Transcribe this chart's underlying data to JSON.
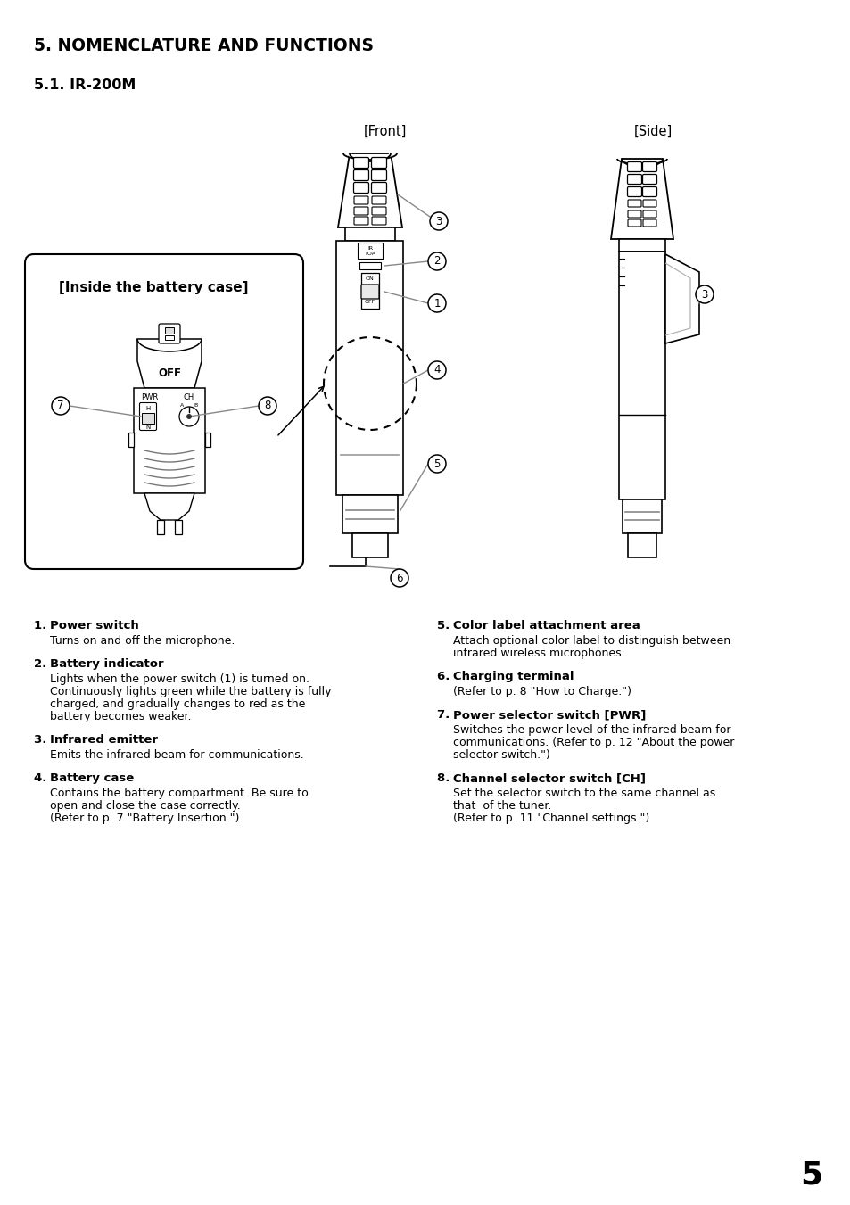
{
  "title": "5. NOMENCLATURE AND FUNCTIONS",
  "subtitle": "5.1. IR-200M",
  "front_label": "[Front]",
  "side_label": "[Side]",
  "battery_label": "[Inside the battery case]",
  "page_number": "5",
  "items": [
    {
      "num": "1",
      "heading": "Power switch",
      "body": "Turns on and off the microphone."
    },
    {
      "num": "2",
      "heading": "Battery indicator",
      "body": "Lights when the power switch (1) is turned on.\nContinuously lights green while the battery is fully\ncharged, and gradually changes to red as the\nbattery becomes weaker."
    },
    {
      "num": "3",
      "heading": "Infrared emitter",
      "body": "Emits the infrared beam for communications."
    },
    {
      "num": "4",
      "heading": "Battery case",
      "body": "Contains the battery compartment. Be sure to\nopen and close the case correctly.\n(Refer to p. 7 \"Battery Insertion.\")"
    },
    {
      "num": "5",
      "heading": "Color label attachment area",
      "body": "Attach optional color label to distinguish between\ninfrared wireless microphones."
    },
    {
      "num": "6",
      "heading": "Charging terminal",
      "body": "(Refer to p. 8 \"How to Charge.\")"
    },
    {
      "num": "7",
      "heading": "Power selector switch [PWR]",
      "body": "Switches the power level of the infrared beam for\ncommunications. (Refer to p. 12 \"About the power\nselector switch.\")"
    },
    {
      "num": "8",
      "heading": "Channel selector switch [CH]",
      "body": "Set the selector switch to the same channel as\nthat  of the tuner.\n(Refer to p. 11 \"Channel settings.\")"
    }
  ],
  "bg_color": "#ffffff",
  "text_color": "#000000",
  "line_color": "#000000",
  "gray_color": "#888888"
}
